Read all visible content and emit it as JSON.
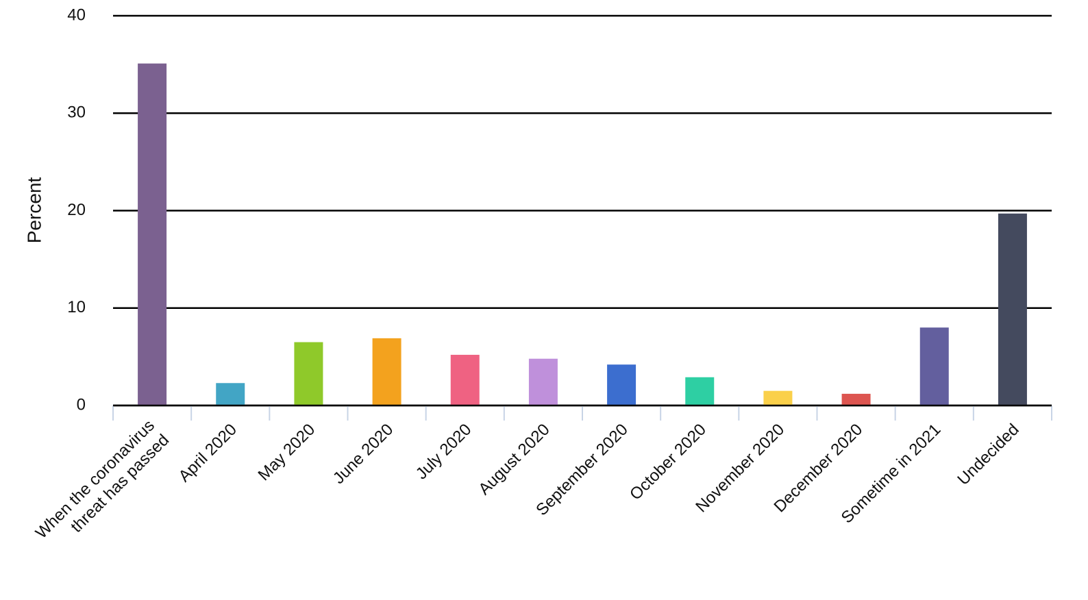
{
  "chart_data": {
    "type": "bar",
    "y_label": "Percent",
    "categories": [
      "When the coronavirus threat has passed",
      "April 2020",
      "May 2020",
      "June 2020",
      "July 2020",
      "August 2020",
      "September 2020",
      "October 2020",
      "November 2020",
      "December 2020",
      "Sometime in 2021",
      "Undecided"
    ],
    "values": [
      35.1,
      2.3,
      6.5,
      6.9,
      5.2,
      4.8,
      4.2,
      2.9,
      1.5,
      1.2,
      8.0,
      19.7
    ],
    "colors": [
      "#7b6190",
      "#42a5c5",
      "#8fc92a",
      "#f3a21e",
      "#ef6282",
      "#bf90db",
      "#3c6ecf",
      "#2ecfa3",
      "#fad04a",
      "#dd5550",
      "#635f9e",
      "#444a5e"
    ],
    "ylim": [
      0,
      40
    ],
    "yticks": [
      0,
      10,
      20,
      30,
      40
    ],
    "grid": true
  }
}
